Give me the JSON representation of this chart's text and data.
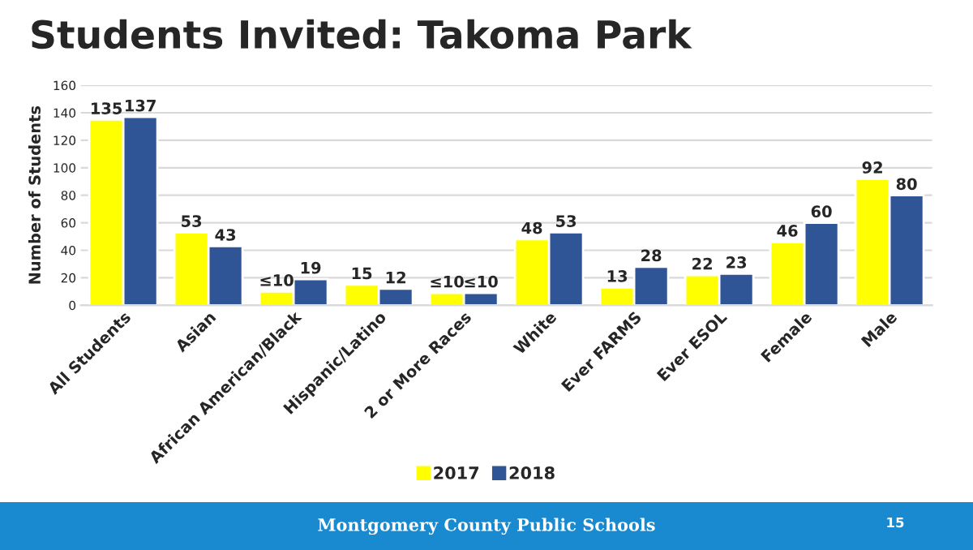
{
  "chart_data": {
    "type": "bar",
    "title": "Students Invited: Takoma Park",
    "ylabel": "Number of Students",
    "categories": [
      "All Students",
      "Asian",
      "African American/Black",
      "Hispanic/Latino",
      "2 or More Races",
      "White",
      "Ever FARMS",
      "Ever ESOL",
      "Female",
      "Male"
    ],
    "series": [
      {
        "name": "2017",
        "color": "#ffff00",
        "values": [
          135,
          53,
          10,
          15,
          9,
          48,
          13,
          22,
          46,
          92
        ],
        "value_labels": [
          "135",
          "53",
          "≤10",
          "15",
          "≤10",
          "48",
          "13",
          "22",
          "46",
          "92"
        ]
      },
      {
        "name": "2018",
        "color": "#2f5597",
        "values": [
          137,
          43,
          19,
          12,
          9,
          53,
          28,
          23,
          60,
          80
        ],
        "value_labels": [
          "137",
          "43",
          "19",
          "12",
          "≤10",
          "53",
          "28",
          "23",
          "60",
          "80"
        ]
      }
    ],
    "ylim": [
      0,
      160
    ],
    "yticks": [
      0,
      20,
      40,
      60,
      80,
      100,
      120,
      140,
      160
    ],
    "grid": "y",
    "legend": "bottom",
    "annotations": [
      "Montgomery County Public Schools",
      "15"
    ]
  }
}
